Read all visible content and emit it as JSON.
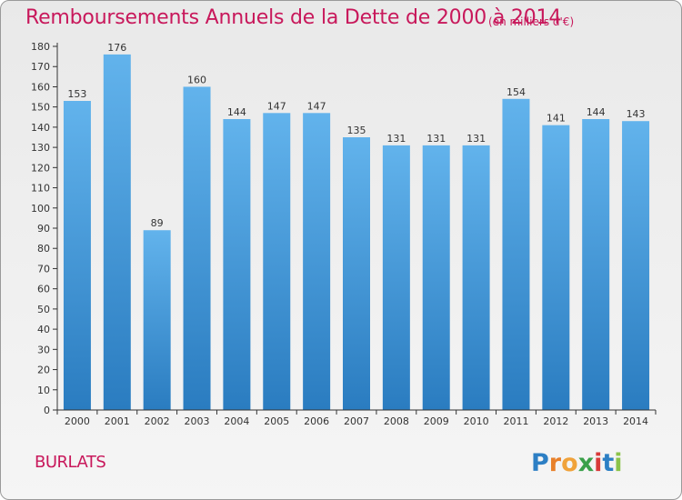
{
  "header": {
    "title": "Remboursements Annuels de la Dette de 2000 à 2014",
    "unit": "(en milliers d'€)"
  },
  "footer": {
    "commune": "BURLATS",
    "logo_text": "Proxiti"
  },
  "colors": {
    "title": "#c8185b",
    "bar_light": "#5fb0ea",
    "bar_dark": "#2c7fc2",
    "axis": "#333333"
  },
  "chart_data": {
    "type": "bar",
    "title": "Remboursements Annuels de la Dette de 2000 à 2014",
    "xlabel": "",
    "ylabel": "",
    "ylim": [
      0,
      180
    ],
    "ytick_step": 10,
    "grid": false,
    "categories": [
      "2000",
      "2001",
      "2002",
      "2003",
      "2004",
      "2005",
      "2006",
      "2007",
      "2008",
      "2009",
      "2010",
      "2011",
      "2012",
      "2013",
      "2014"
    ],
    "values": [
      153,
      176,
      89,
      160,
      144,
      147,
      147,
      135,
      131,
      131,
      131,
      154,
      141,
      144,
      143
    ]
  }
}
